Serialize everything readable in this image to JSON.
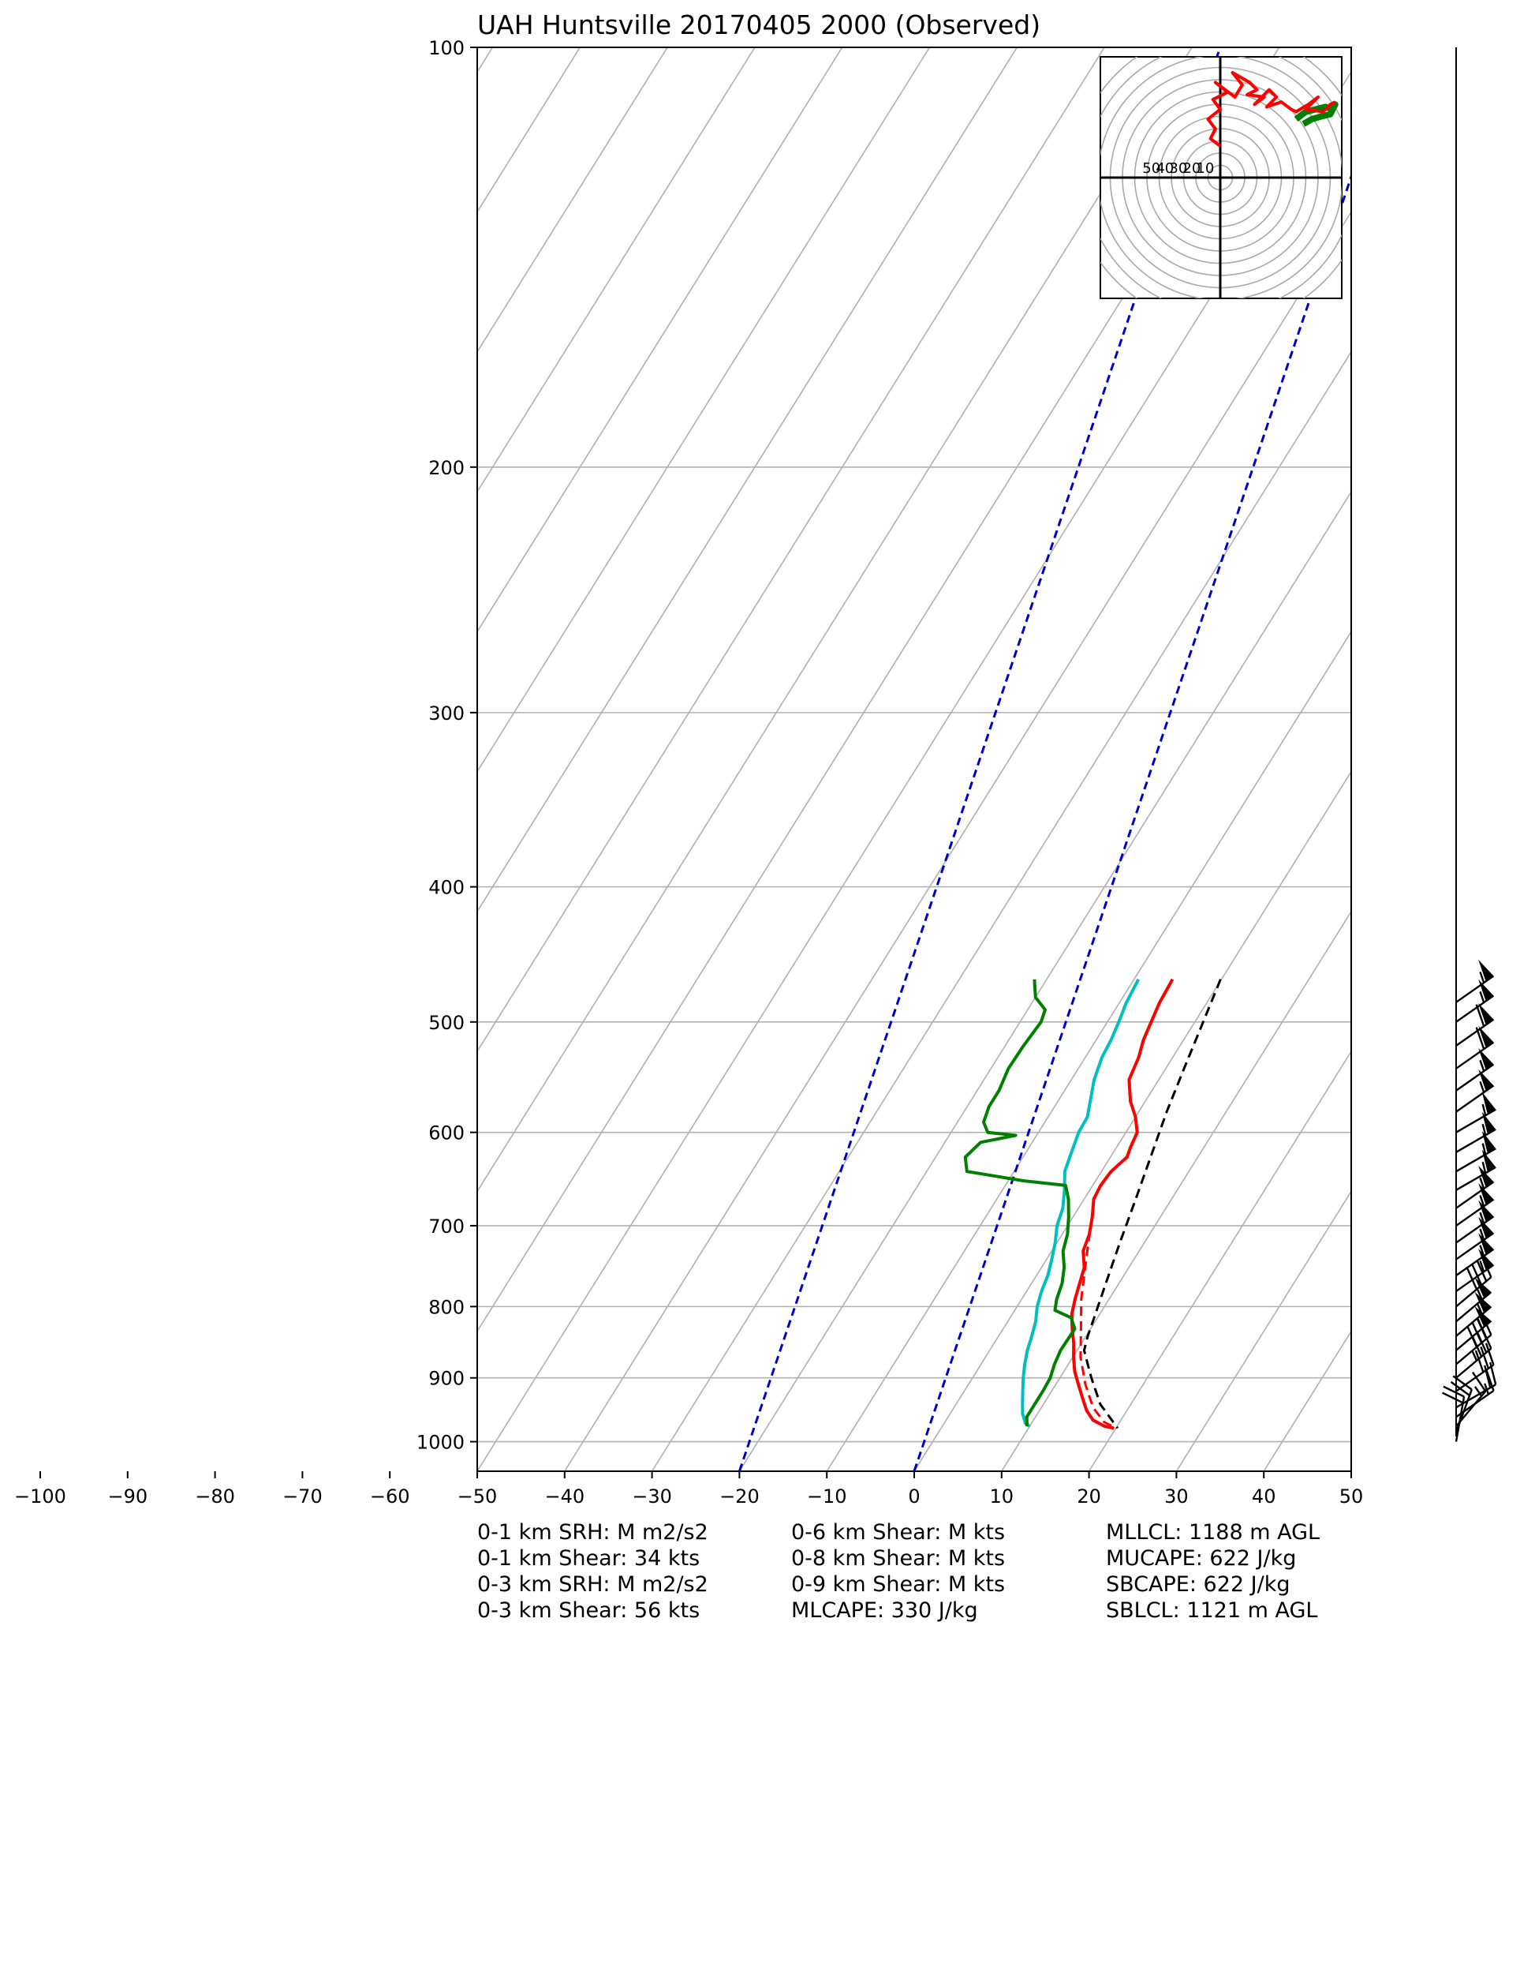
{
  "chart_data": {
    "type": "line",
    "title": "UAH Huntsville 20170405 2000   (Observed)",
    "x_ticks": [
      -100,
      -90,
      -80,
      -70,
      -60,
      -50,
      -40,
      -30,
      -20,
      -10,
      0,
      10,
      20,
      30,
      40,
      50
    ],
    "y_ticks": [
      100,
      200,
      300,
      400,
      500,
      600,
      700,
      800,
      900,
      1000
    ],
    "xlim": [
      -50,
      50
    ],
    "ylim": [
      1050,
      100
    ],
    "log_y": true,
    "grid": true,
    "series": [
      {
        "name": "",
        "color": "#ff0000",
        "style": "solid",
        "points": [
          [
            -5.6,
            466
          ],
          [
            -5.4,
            485
          ],
          [
            -5.0,
            500
          ],
          [
            -4.6,
            515
          ],
          [
            -3.9,
            530
          ],
          [
            -3.4,
            550
          ],
          [
            -1.7,
            570
          ],
          [
            0.0,
            585
          ],
          [
            1.3,
            600
          ],
          [
            1.6,
            615
          ],
          [
            1.9,
            625
          ],
          [
            1.1,
            640
          ],
          [
            0.9,
            655
          ],
          [
            1.1,
            670
          ],
          [
            2.2,
            690
          ],
          [
            3.1,
            710
          ],
          [
            3.6,
            730
          ],
          [
            4.9,
            750
          ],
          [
            5.5,
            770
          ],
          [
            6.1,
            790
          ],
          [
            6.8,
            810
          ],
          [
            7.9,
            830
          ],
          [
            9.1,
            850
          ],
          [
            10.1,
            870
          ],
          [
            11.2,
            890
          ],
          [
            12.6,
            910
          ],
          [
            14.0,
            930
          ],
          [
            15.4,
            950
          ],
          [
            16.8,
            965
          ],
          [
            18.6,
            975
          ],
          [
            19.8,
            978
          ]
        ]
      },
      {
        "name": "",
        "color": "#ff0000",
        "style": "dashed",
        "points": [
          [
            2.2,
            690
          ],
          [
            3.6,
            720
          ],
          [
            5.0,
            750
          ],
          [
            6.8,
            790
          ],
          [
            8.9,
            830
          ],
          [
            10.9,
            870
          ],
          [
            13.4,
            910
          ],
          [
            15.9,
            945
          ],
          [
            18.2,
            968
          ],
          [
            20.0,
            978
          ]
        ]
      },
      {
        "name": "",
        "color": "#00bfbf",
        "style": "solid",
        "points": [
          [
            -9.5,
            466
          ],
          [
            -9.2,
            485
          ],
          [
            -8.7,
            500
          ],
          [
            -8.3,
            515
          ],
          [
            -8.1,
            530
          ],
          [
            -7.4,
            550
          ],
          [
            -6.3,
            570
          ],
          [
            -5.5,
            585
          ],
          [
            -5.4,
            600
          ],
          [
            -4.8,
            620
          ],
          [
            -4.2,
            640
          ],
          [
            -2.9,
            660
          ],
          [
            -1.8,
            680
          ],
          [
            -1.2,
            700
          ],
          [
            -0.2,
            720
          ],
          [
            0.6,
            740
          ],
          [
            1.3,
            760
          ],
          [
            1.7,
            780
          ],
          [
            2.3,
            800
          ],
          [
            3.2,
            820
          ],
          [
            3.8,
            840
          ],
          [
            4.3,
            860
          ],
          [
            5.0,
            880
          ],
          [
            5.8,
            900
          ],
          [
            6.7,
            920
          ],
          [
            7.6,
            940
          ],
          [
            8.3,
            955
          ],
          [
            9.3,
            970
          ],
          [
            10.0,
            975
          ]
        ]
      },
      {
        "name": "",
        "color": "#007f00",
        "style": "solid",
        "points": [
          [
            -21.4,
            466
          ],
          [
            -20.0,
            480
          ],
          [
            -18.0,
            490
          ],
          [
            -17.6,
            500
          ],
          [
            -17.9,
            520
          ],
          [
            -18.0,
            540
          ],
          [
            -17.5,
            560
          ],
          [
            -17.5,
            575
          ],
          [
            -17.0,
            590
          ],
          [
            -15.8,
            600
          ],
          [
            -12.4,
            603
          ],
          [
            -15.9,
            610
          ],
          [
            -16.6,
            625
          ],
          [
            -15.4,
            640
          ],
          [
            -8.2,
            650
          ],
          [
            -3.1,
            655
          ],
          [
            -1.8,
            670
          ],
          [
            -0.5,
            690
          ],
          [
            0.6,
            710
          ],
          [
            1.3,
            730
          ],
          [
            2.6,
            750
          ],
          [
            3.5,
            770
          ],
          [
            4.0,
            790
          ],
          [
            4.6,
            805
          ],
          [
            7.0,
            815
          ],
          [
            8.2,
            830
          ],
          [
            8.1,
            860
          ],
          [
            8.4,
            880
          ],
          [
            8.9,
            900
          ],
          [
            9.0,
            920
          ],
          [
            9.0,
            940
          ],
          [
            9.0,
            960
          ],
          [
            9.7,
            975
          ]
        ]
      },
      {
        "name": "",
        "color": "#000000",
        "style": "dashed",
        "points": [
          [
            -0.1,
            466
          ],
          [
            1.1,
            505
          ],
          [
            2.1,
            540
          ],
          [
            3.2,
            580
          ],
          [
            4.6,
            625
          ],
          [
            5.9,
            670
          ],
          [
            7.2,
            720
          ],
          [
            8.5,
            770
          ],
          [
            9.5,
            810
          ],
          [
            10.2,
            840
          ],
          [
            10.8,
            860
          ],
          [
            13.6,
            900
          ],
          [
            16.5,
            940
          ],
          [
            20.2,
            978
          ]
        ]
      }
    ],
    "mixing_ratio_lines": [
      {
        "color": "#0000cc",
        "style": "dashed",
        "points": [
          [
            -20,
            1050
          ],
          [
            35.0,
            100
          ]
        ]
      },
      {
        "color": "#0000cc",
        "style": "dashed",
        "points": [
          [
            0,
            1050
          ],
          [
            55.0,
            100
          ]
        ]
      }
    ],
    "hodograph": {
      "ring_labels": [
        "50",
        "40",
        "30",
        "20",
        "10"
      ],
      "series": [
        {
          "color": "#007f00",
          "points": [
            [
              62,
              22
            ],
            [
              70,
              28
            ],
            [
              78,
              30
            ],
            [
              86,
              32
            ],
            [
              92,
              30
            ],
            [
              94,
              34
            ],
            [
              90,
              26
            ],
            [
              82,
              24
            ],
            [
              75,
              22
            ],
            [
              68,
              18
            ]
          ]
        },
        {
          "color": "#ff0000",
          "points": [
            [
              0,
              0
            ],
            [
              -8,
              6
            ],
            [
              -4,
              14
            ],
            [
              -10,
              22
            ],
            [
              0,
              30
            ],
            [
              -6,
              38
            ],
            [
              6,
              44
            ],
            [
              -4,
              52
            ],
            [
              12,
              40
            ],
            [
              18,
              50
            ],
            [
              10,
              60
            ],
            [
              24,
              52
            ],
            [
              30,
              46
            ],
            [
              22,
              42
            ],
            [
              36,
              40
            ],
            [
              28,
              34
            ],
            [
              40,
              46
            ],
            [
              46,
              40
            ],
            [
              38,
              32
            ],
            [
              50,
              36
            ],
            [
              58,
              30
            ],
            [
              62,
              28
            ],
            [
              72,
              34
            ],
            [
              80,
              40
            ],
            [
              70,
              30
            ],
            [
              84,
              28
            ],
            [
              90,
              34
            ],
            [
              94,
              36
            ]
          ]
        }
      ]
    },
    "wind_barbs": [
      {
        "p": 484,
        "dir": 235,
        "spd": 55
      },
      {
        "p": 500,
        "dir": 235,
        "spd": 55
      },
      {
        "p": 520,
        "dir": 235,
        "spd": 60
      },
      {
        "p": 540,
        "dir": 235,
        "spd": 60
      },
      {
        "p": 560,
        "dir": 235,
        "spd": 55
      },
      {
        "p": 580,
        "dir": 235,
        "spd": 55
      },
      {
        "p": 600,
        "dir": 240,
        "spd": 55
      },
      {
        "p": 620,
        "dir": 240,
        "spd": 55
      },
      {
        "p": 640,
        "dir": 240,
        "spd": 55
      },
      {
        "p": 660,
        "dir": 240,
        "spd": 55
      },
      {
        "p": 680,
        "dir": 235,
        "spd": 55
      },
      {
        "p": 700,
        "dir": 235,
        "spd": 55
      },
      {
        "p": 720,
        "dir": 235,
        "spd": 55
      },
      {
        "p": 740,
        "dir": 235,
        "spd": 55
      },
      {
        "p": 760,
        "dir": 235,
        "spd": 55
      },
      {
        "p": 780,
        "dir": 235,
        "spd": 55
      },
      {
        "p": 800,
        "dir": 230,
        "spd": 40
      },
      {
        "p": 820,
        "dir": 230,
        "spd": 55
      },
      {
        "p": 840,
        "dir": 230,
        "spd": 55
      },
      {
        "p": 860,
        "dir": 230,
        "spd": 55
      },
      {
        "p": 880,
        "dir": 230,
        "spd": 40
      },
      {
        "p": 900,
        "dir": 230,
        "spd": 35
      },
      {
        "p": 920,
        "dir": 235,
        "spd": 30
      },
      {
        "p": 945,
        "dir": 240,
        "spd": 20
      },
      {
        "p": 960,
        "dir": 235,
        "spd": 15
      },
      {
        "p": 975,
        "dir": 220,
        "spd": 15
      },
      {
        "p": 985,
        "dir": 200,
        "spd": 20
      },
      {
        "p": 1000,
        "dir": 190,
        "spd": 20
      }
    ]
  },
  "stats": {
    "col1": [
      "0-1 km SRH: M m2/s2",
      "0-1 km Shear: 34 kts",
      "0-3 km SRH: M m2/s2",
      "0-3 km Shear: 56 kts"
    ],
    "col2": [
      "0-6 km Shear: M kts",
      "0-8 km Shear: M kts",
      "0-9 km Shear: M kts",
      "MLCAPE: 330 J/kg"
    ],
    "col3": [
      "MLLCL: 1188 m AGL",
      "MUCAPE: 622 J/kg",
      "SBCAPE: 622 J/kg",
      "SBLCL: 1121 m AGL"
    ]
  }
}
